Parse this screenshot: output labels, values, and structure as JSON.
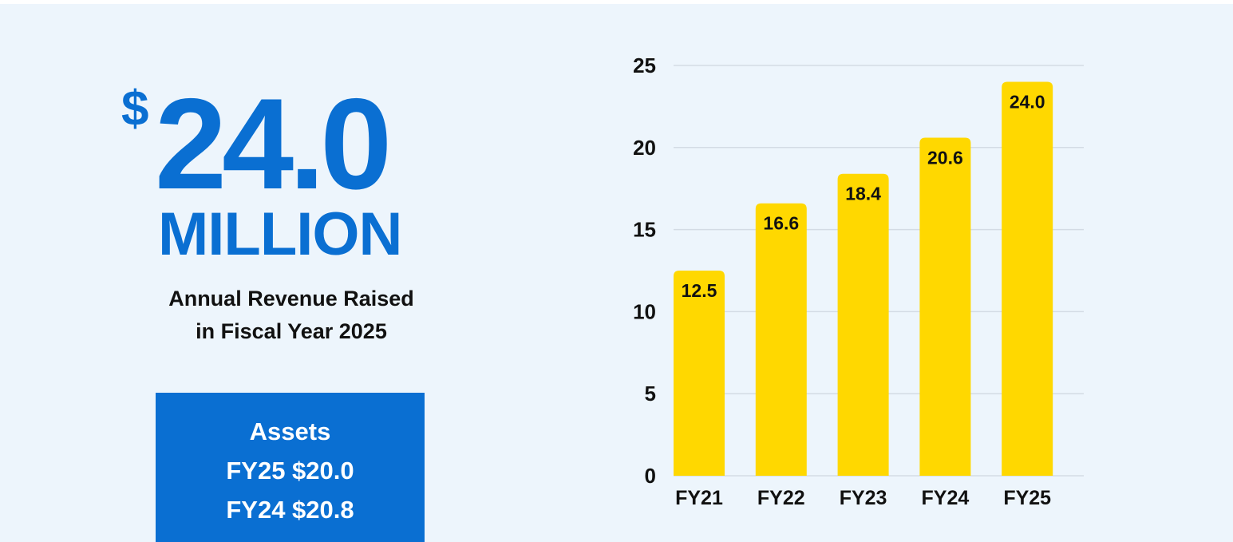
{
  "headline": {
    "currency_symbol": "$",
    "amount": "24.0",
    "unit": "MILLION",
    "caption_line1": "Annual Revenue Raised",
    "caption_line2": "in Fiscal Year 2025"
  },
  "assets": {
    "title": "Assets",
    "fy25": "FY25 $20.0",
    "fy24": "FY24 $20.8"
  },
  "colors": {
    "background": "#edf5fc",
    "accent_blue": "#0a6fd2",
    "bar_yellow": "#ffd800",
    "grid": "#d3dbe4",
    "text": "#111111"
  },
  "chart_data": {
    "type": "bar",
    "categories": [
      "FY21",
      "FY22",
      "FY23",
      "FY24",
      "FY25"
    ],
    "values": [
      12.5,
      16.6,
      18.4,
      20.6,
      24.0
    ],
    "value_labels": [
      "12.5",
      "16.6",
      "18.4",
      "20.6",
      "24.0"
    ],
    "yticks": [
      "0",
      "5",
      "10",
      "15",
      "20",
      "25"
    ],
    "ylim": [
      0,
      25
    ],
    "grid": true,
    "legend": "none",
    "title": "",
    "xlabel": "",
    "ylabel": ""
  }
}
